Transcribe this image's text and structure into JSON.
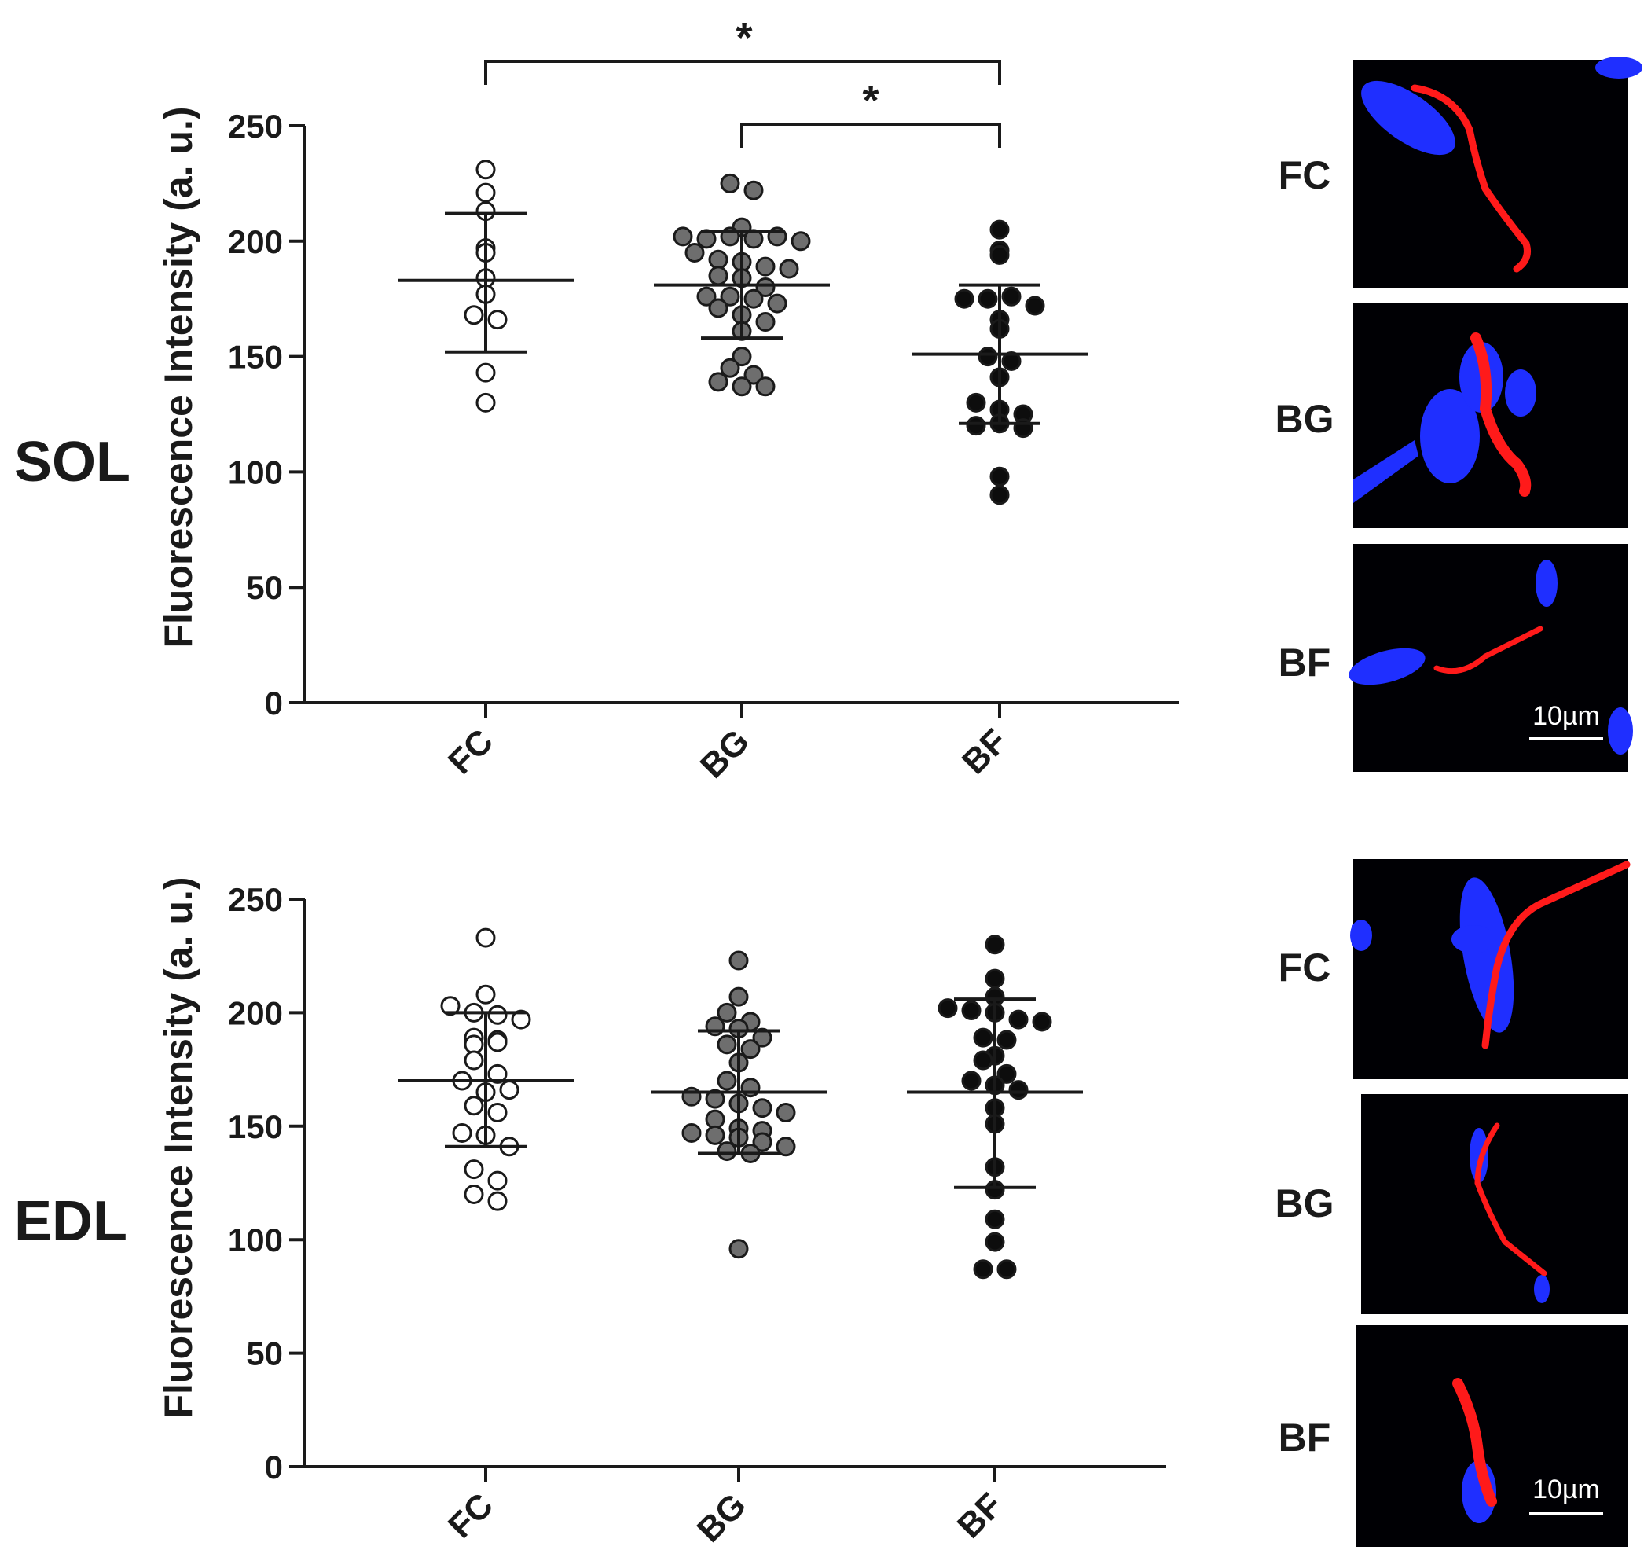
{
  "figure": {
    "panel_labels": [
      "SOL",
      "EDL"
    ],
    "scale_bar_label": "10µm",
    "micrograph_labels": [
      "FC",
      "BG",
      "BF"
    ]
  },
  "colors": {
    "FC": "#ffffff",
    "BG": "#6e6e6e",
    "BF": "#0d0d0d",
    "stroke": "#1a1a1a",
    "nucleus": "#1f2fff",
    "membrane": "#ff1a1a"
  },
  "chart_data": [
    {
      "type": "scatter",
      "panel": "SOL",
      "ylabel": "Fluorescence Intensity (a. u.)",
      "xlabel": "",
      "ylim": [
        0,
        250
      ],
      "yticks": [
        0,
        50,
        100,
        150,
        200,
        250
      ],
      "categories": [
        "FC",
        "BG",
        "BF"
      ],
      "series": [
        {
          "name": "FC",
          "mean": 183,
          "sd_upper": 212,
          "sd_lower": 152,
          "values": [
            231,
            221,
            213,
            197,
            195,
            184,
            177,
            168,
            166,
            143,
            130
          ]
        },
        {
          "name": "BG",
          "mean": 181,
          "sd_upper": 204,
          "sd_lower": 158,
          "values": [
            225,
            222,
            206,
            202,
            201,
            202,
            201,
            202,
            200,
            195,
            192,
            191,
            189,
            188,
            185,
            184,
            180,
            176,
            176,
            175,
            173,
            171,
            168,
            165,
            161,
            150,
            145,
            142,
            139,
            137,
            137
          ]
        },
        {
          "name": "BF",
          "mean": 151,
          "sd_upper": 181,
          "sd_lower": 121,
          "values": [
            205,
            196,
            194,
            175,
            175,
            176,
            172,
            166,
            162,
            150,
            148,
            141,
            130,
            127,
            125,
            120,
            121,
            119,
            98,
            90
          ]
        }
      ],
      "significance": [
        {
          "from": "FC",
          "to": "BF",
          "label": "*"
        },
        {
          "from": "BG",
          "to": "BF",
          "label": "*"
        }
      ]
    },
    {
      "type": "scatter",
      "panel": "EDL",
      "ylabel": "Fluorescence Intensity (a. u.)",
      "xlabel": "",
      "ylim": [
        0,
        250
      ],
      "yticks": [
        0,
        50,
        100,
        150,
        200,
        250
      ],
      "categories": [
        "FC",
        "BG",
        "BF"
      ],
      "series": [
        {
          "name": "FC",
          "mean": 170,
          "sd_upper": 200,
          "sd_lower": 141,
          "values": [
            233,
            208,
            203,
            200,
            199,
            197,
            189,
            188,
            186,
            187,
            179,
            173,
            170,
            165,
            166,
            159,
            156,
            147,
            146,
            141,
            131,
            126,
            120,
            117
          ]
        },
        {
          "name": "BG",
          "mean": 165,
          "sd_upper": 192,
          "sd_lower": 138,
          "values": [
            223,
            207,
            200,
            196,
            194,
            193,
            189,
            186,
            184,
            178,
            170,
            167,
            163,
            162,
            160,
            158,
            156,
            153,
            149,
            148,
            147,
            146,
            145,
            143,
            141,
            139,
            138,
            96
          ]
        },
        {
          "name": "BF",
          "mean": 165,
          "sd_upper": 206,
          "sd_lower": 123,
          "values": [
            230,
            215,
            207,
            202,
            201,
            200,
            197,
            196,
            189,
            188,
            181,
            179,
            173,
            170,
            168,
            166,
            158,
            151,
            132,
            122,
            109,
            99,
            87,
            87
          ]
        }
      ],
      "significance": []
    }
  ]
}
